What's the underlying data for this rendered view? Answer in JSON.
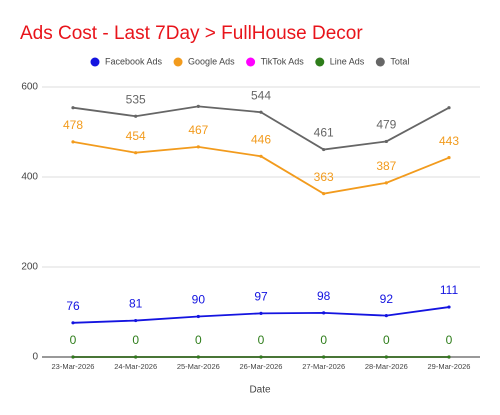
{
  "chart_data": {
    "type": "line",
    "title": "Ads Cost - Last 7Day > FullHouse Decor",
    "x_label": "Date",
    "categories": [
      "23-Mar-2026",
      "24-Mar-2026",
      "25-Mar-2026",
      "26-Mar-2026",
      "27-Mar-2026",
      "28-Mar-2026",
      "29-Mar-2026"
    ],
    "series": [
      {
        "name": "Facebook Ads",
        "color": "#1414e0",
        "labels": true,
        "values": [
          76,
          81,
          90,
          97,
          98,
          92,
          111
        ]
      },
      {
        "name": "Google Ads",
        "color": "#f29b1d",
        "labels": true,
        "values": [
          478,
          454,
          467,
          446,
          363,
          387,
          443
        ]
      },
      {
        "name": "TikTok Ads",
        "color": "#ff00ff",
        "labels": false,
        "values": [
          0,
          0,
          0,
          0,
          0,
          0,
          0
        ]
      },
      {
        "name": "Line Ads",
        "color": "#2e7d1a",
        "labels": true,
        "values": [
          0,
          0,
          0,
          0,
          0,
          0,
          0
        ]
      },
      {
        "name": "Total",
        "color": "#666666",
        "labels": true,
        "values": [
          554,
          535,
          557,
          544,
          461,
          479,
          554
        ],
        "value_labels": [
          null,
          "535",
          null,
          "544",
          "461",
          "479",
          null
        ]
      }
    ],
    "ylim": [
      0,
      600
    ],
    "yticks": [
      0,
      200,
      400,
      600
    ],
    "grid": true
  }
}
